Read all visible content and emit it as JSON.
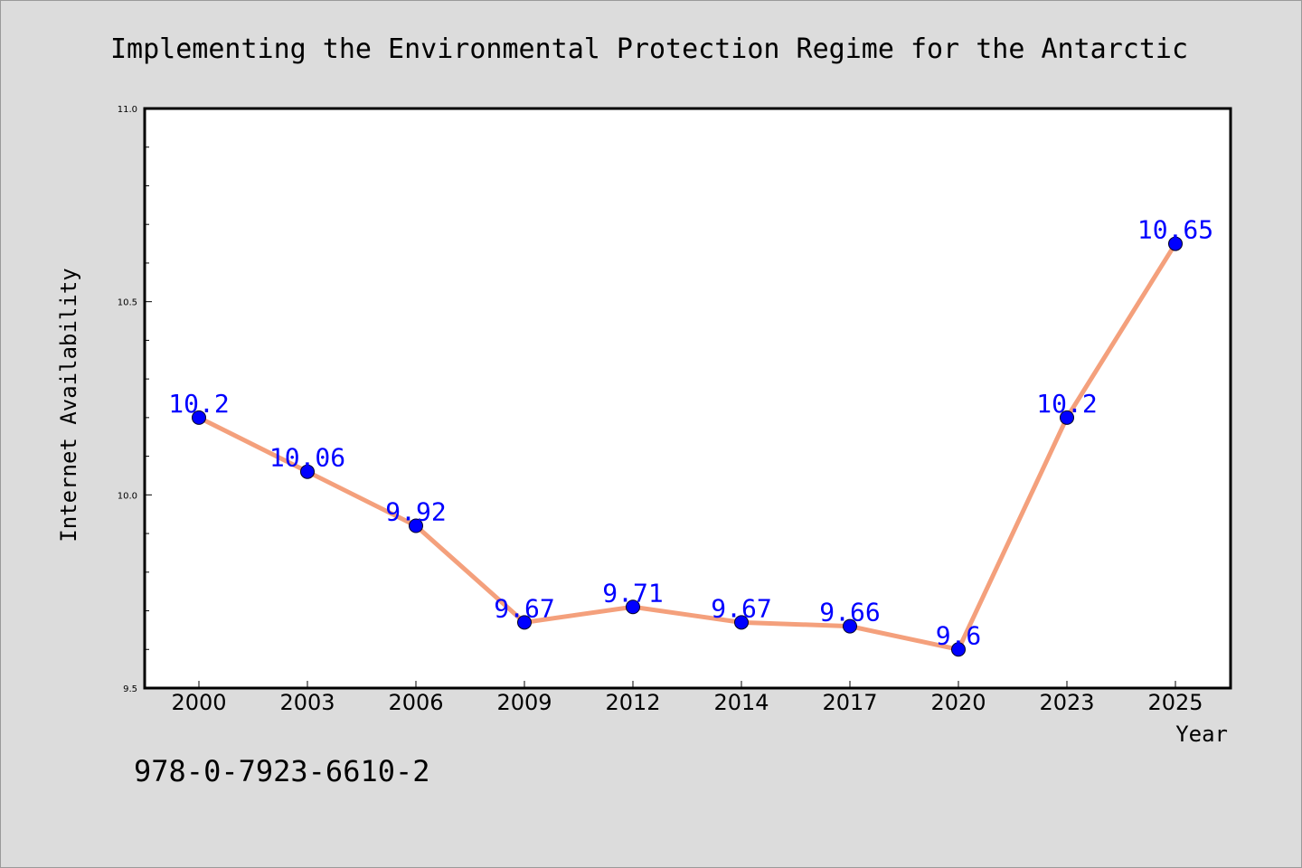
{
  "chart_data": {
    "type": "line",
    "title": "Implementing the Environmental Protection Regime for the Antarctic",
    "xlabel": "Year",
    "ylabel": "Internet Availability",
    "categories": [
      "2000",
      "2003",
      "2006",
      "2009",
      "2012",
      "2014",
      "2017",
      "2020",
      "2023",
      "2025"
    ],
    "series": [
      {
        "values": [
          10.2,
          10.06,
          9.92,
          9.67,
          9.71,
          9.67,
          9.66,
          9.6,
          10.2,
          10.65
        ]
      }
    ],
    "data_labels": [
      "10.2",
      "10.06",
      "9.92",
      "9.67",
      "9.71",
      "9.67",
      "9.66",
      "9.6",
      "10.2",
      "10.65"
    ],
    "ylim": [
      9.5,
      11.0
    ],
    "yticks": [
      "9.5",
      "10.0",
      "10.5",
      "11.0"
    ],
    "grid": false,
    "legend": "none",
    "colors": {
      "line": "#f4a07c",
      "marker": "#0000ff",
      "label": "#0000ff",
      "background": "#dcdcdc",
      "plot_area": "#ffffff"
    }
  },
  "footer": {
    "isbn": "978-0-7923-6610-2"
  }
}
